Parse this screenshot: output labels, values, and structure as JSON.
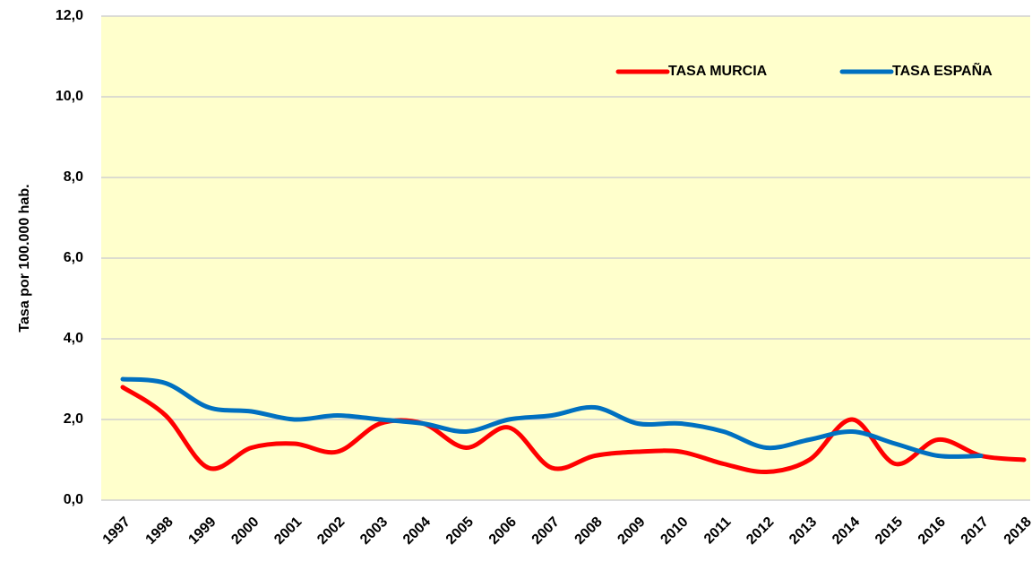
{
  "chart_data": {
    "type": "line",
    "y_label": "Tasa por 100.000 hab.",
    "categories": [
      "1997",
      "1998",
      "1999",
      "2000",
      "2001",
      "2002",
      "2003",
      "2004",
      "2005",
      "2006",
      "2007",
      "2008",
      "2009",
      "2010",
      "2011",
      "2012",
      "2013",
      "2014",
      "2015",
      "2016",
      "2017",
      "2018"
    ],
    "series": [
      {
        "name": "TASA MURCIA",
        "color": "#ff0000",
        "values": [
          2.8,
          2.1,
          0.8,
          1.3,
          1.4,
          1.2,
          1.9,
          1.9,
          1.3,
          1.8,
          0.8,
          1.1,
          1.2,
          1.2,
          0.9,
          0.7,
          1.0,
          2.0,
          0.9,
          1.5,
          1.1,
          1.0
        ]
      },
      {
        "name": "TASA ESPAÑA",
        "color": "#0070c0",
        "values": [
          3.0,
          2.9,
          2.3,
          2.2,
          2.0,
          2.1,
          2.0,
          1.9,
          1.7,
          2.0,
          2.1,
          2.3,
          1.9,
          1.9,
          1.7,
          1.3,
          1.5,
          1.7,
          1.4,
          1.1,
          1.1,
          null
        ]
      }
    ],
    "ylim": [
      0,
      12
    ],
    "yticks": [
      {
        "value": 0,
        "label": "0,0"
      },
      {
        "value": 2,
        "label": "2,0"
      },
      {
        "value": 4,
        "label": "4,0"
      },
      {
        "value": 6,
        "label": "6,0"
      },
      {
        "value": 8,
        "label": "8,0"
      },
      {
        "value": 10,
        "label": "10,0"
      },
      {
        "value": 12,
        "label": "12,0"
      }
    ],
    "grid": true,
    "legend": "top-right",
    "background": "#ffffcc"
  }
}
